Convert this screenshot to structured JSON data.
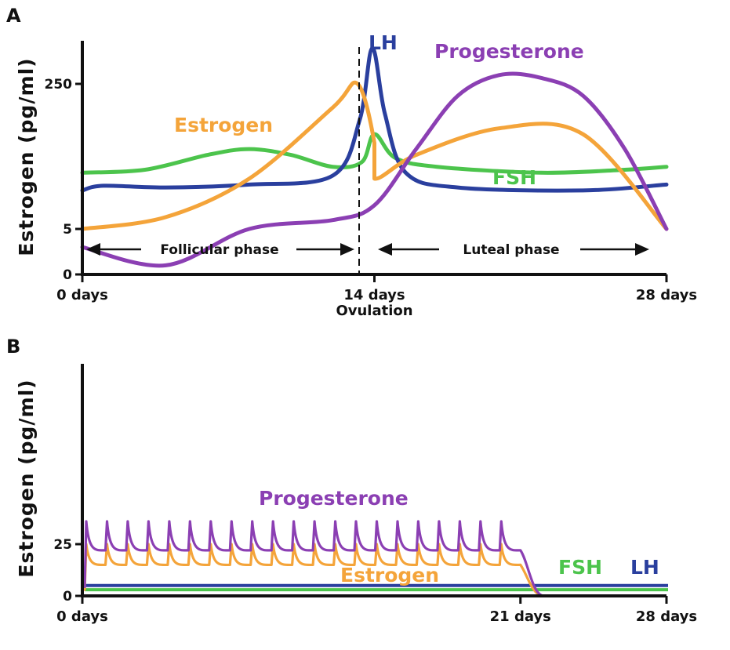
{
  "colors": {
    "estrogen": "#f4a43a",
    "progesterone": "#8b3fb3",
    "lh": "#2a3f9e",
    "fsh": "#4cc44c"
  },
  "chart_data": [
    {
      "panel": "A",
      "type": "line",
      "ylabel": "Estrogen (pg/ml)",
      "xlabel": "",
      "xlim": [
        0,
        28
      ],
      "y_ticks": [
        "0",
        "5",
        "250"
      ],
      "x_ticks": [
        {
          "value": 0,
          "label": "0 days"
        },
        {
          "value": 14,
          "label": "14 days",
          "sublabel": "Ovulation"
        },
        {
          "value": 28,
          "label": "28 days"
        }
      ],
      "annotations": {
        "follicular": "Follicular phase",
        "luteal": "Luteal phase"
      },
      "series": [
        {
          "name": "Estrogen",
          "key": "estrogen",
          "x": [
            0,
            4,
            8,
            12,
            13.2,
            14,
            14,
            16,
            20,
            24,
            28
          ],
          "y": [
            5,
            25,
            90,
            210,
            250,
            150,
            90,
            130,
            175,
            165,
            5
          ]
        },
        {
          "name": "Progesterone",
          "key": "progesterone",
          "x": [
            0,
            4,
            8,
            12,
            14,
            16,
            18,
            20,
            22,
            24,
            26,
            28
          ],
          "y": [
            3,
            1,
            5,
            20,
            45,
            140,
            230,
            265,
            260,
            230,
            140,
            5
          ]
        },
        {
          "name": "LH",
          "key": "lh",
          "x": [
            0,
            1,
            4,
            8,
            12,
            13.3,
            13.9,
            14.5,
            15.5,
            18,
            24,
            28
          ],
          "y": [
            70,
            78,
            75,
            80,
            95,
            190,
            310,
            200,
            100,
            75,
            70,
            80
          ]
        },
        {
          "name": "FSH",
          "key": "fsh",
          "x": [
            0,
            3,
            6,
            8,
            10,
            12,
            13.4,
            14,
            15,
            17,
            22,
            26,
            28
          ],
          "y": [
            100,
            105,
            130,
            140,
            130,
            110,
            118,
            165,
            125,
            110,
            100,
            105,
            110
          ]
        }
      ]
    },
    {
      "panel": "B",
      "type": "line",
      "ylabel": "Estrogen (pg/ml)",
      "xlabel": "",
      "xlim": [
        0,
        28
      ],
      "y_ticks": [
        "0",
        "25"
      ],
      "x_ticks": [
        {
          "value": 0,
          "label": "0 days"
        },
        {
          "value": 21,
          "label": "21 days"
        },
        {
          "value": 28,
          "label": "28 days"
        }
      ],
      "series": [
        {
          "name": "Progesterone",
          "key": "progesterone",
          "pattern": "daily spikes",
          "peak": 36,
          "trough": 22,
          "days": [
            0,
            21
          ],
          "after": 0
        },
        {
          "name": "Estrogen",
          "key": "estrogen",
          "pattern": "daily spikes",
          "peak": 25,
          "trough": 15,
          "days": [
            0,
            21
          ],
          "after": 0
        },
        {
          "name": "FSH",
          "key": "fsh",
          "constant": 3
        },
        {
          "name": "LH",
          "key": "lh",
          "constant": 5
        }
      ]
    }
  ],
  "labels": {
    "panel_a": "A",
    "panel_b": "B",
    "estrogen": "Estrogen",
    "progesterone": "Progesterone",
    "lh": "LH",
    "fsh": "FSH",
    "b_progesterone": "Progesterone",
    "b_estrogen": "Estrogen",
    "b_fsh": "FSH",
    "b_lh": "LH"
  }
}
